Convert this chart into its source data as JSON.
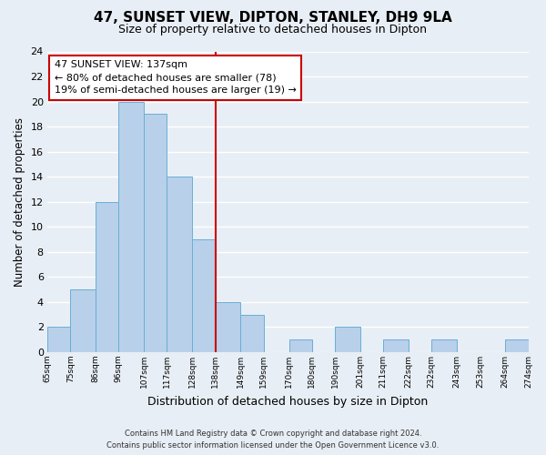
{
  "title": "47, SUNSET VIEW, DIPTON, STANLEY, DH9 9LA",
  "subtitle": "Size of property relative to detached houses in Dipton",
  "xlabel": "Distribution of detached houses by size in Dipton",
  "ylabel": "Number of detached properties",
  "bar_edges": [
    65,
    75,
    86,
    96,
    107,
    117,
    128,
    138,
    149,
    159,
    170,
    180,
    190,
    201,
    211,
    222,
    232,
    243,
    253,
    264,
    274
  ],
  "bar_heights": [
    2,
    5,
    12,
    20,
    19,
    14,
    9,
    4,
    3,
    0,
    1,
    0,
    2,
    0,
    1,
    0,
    1,
    0,
    0,
    1
  ],
  "tick_labels": [
    "65sqm",
    "75sqm",
    "86sqm",
    "96sqm",
    "107sqm",
    "117sqm",
    "128sqm",
    "138sqm",
    "149sqm",
    "159sqm",
    "170sqm",
    "180sqm",
    "190sqm",
    "201sqm",
    "211sqm",
    "222sqm",
    "232sqm",
    "243sqm",
    "253sqm",
    "264sqm",
    "274sqm"
  ],
  "bar_color": "#b8d0ea",
  "bar_edge_color": "#6aaed6",
  "vline_x": 138,
  "vline_color": "#cc0000",
  "annotation_line1": "47 SUNSET VIEW: 137sqm",
  "annotation_line2": "← 80% of detached houses are smaller (78)",
  "annotation_line3": "19% of semi-detached houses are larger (19) →",
  "annotation_box_color": "#ffffff",
  "annotation_box_edge": "#cc0000",
  "ylim": [
    0,
    24
  ],
  "yticks": [
    0,
    2,
    4,
    6,
    8,
    10,
    12,
    14,
    16,
    18,
    20,
    22,
    24
  ],
  "footer_line1": "Contains HM Land Registry data © Crown copyright and database right 2024.",
  "footer_line2": "Contains public sector information licensed under the Open Government Licence v3.0.",
  "bg_color": "#e8eef5",
  "grid_color": "#ffffff",
  "title_fontsize": 11,
  "subtitle_fontsize": 9
}
